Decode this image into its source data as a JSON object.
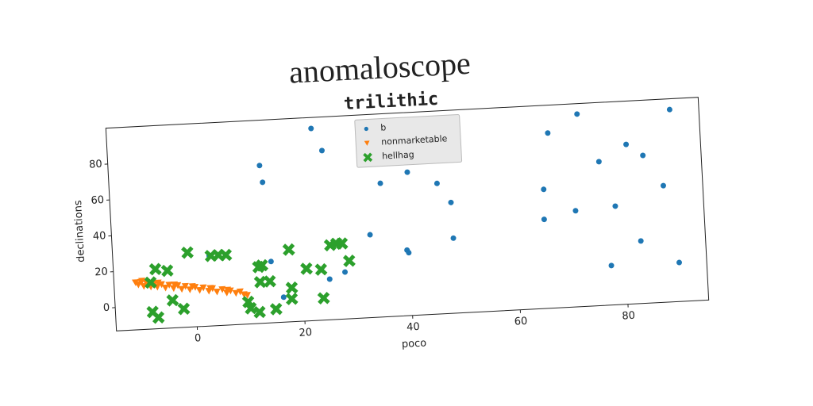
{
  "chart_data": {
    "type": "scatter",
    "title": "anomaloscope",
    "subtitle": "trilithic",
    "x_label": "poco",
    "y_label": "declinations",
    "xlim": [
      -15,
      95
    ],
    "ylim": [
      -13,
      100
    ],
    "xticks": [
      0,
      20,
      40,
      60,
      80
    ],
    "yticks": [
      0,
      20,
      40,
      60,
      80
    ],
    "legend": "upper center",
    "series": [
      {
        "name": "b",
        "color": "#1f77b4",
        "marker": "circle",
        "x": [
          23.0,
          13.1,
          13.5,
          24.8,
          40.4,
          35.3,
          45.8,
          48.2,
          32.9,
          48.3,
          39.6,
          39.9,
          27.9,
          25.0,
          14.3,
          16.3,
          2.9,
          65.5,
          66.8,
          72.4,
          81.2,
          84.2,
          76.0,
          87.7,
          89.6,
          65.3,
          71.2,
          78.6,
          83.0,
          77.3,
          89.9
        ],
        "y": [
          93.9,
          74.8,
          65.4,
          81.3,
          66.8,
          61.4,
          59.7,
          48.7,
          33.1,
          28.8,
          23.5,
          22.0,
          13.1,
          9.6,
          21.1,
          0.9,
          26.1,
          53.3,
          84.5,
          94.2,
          75.9,
          69.3,
          67.1,
          51.9,
          94.0,
          36.6,
          40.5,
          41.9,
          21.8,
          9.0,
          8.7
        ]
      },
      {
        "name": "nonmarketable",
        "color": "#ff7f0e",
        "marker": "triangle_down",
        "x": [
          -11.0,
          -10.5,
          -10.0,
          -9.5,
          -9.0,
          -8.2,
          -7.5,
          -7.0,
          -6.2,
          -5.5,
          -4.8,
          -4.0,
          -3.2,
          -2.5,
          -1.8,
          -1.0,
          0.0,
          0.8,
          1.5,
          2.5,
          3.2,
          4.0,
          5.0,
          5.8,
          6.5,
          7.5,
          8.3,
          9.0,
          9.6,
          -9.8,
          -6.8,
          -3.8,
          -0.5,
          2.8,
          6.0
        ],
        "y": [
          13.3,
          12.0,
          13.5,
          11.0,
          12.8,
          10.5,
          12.0,
          10.2,
          11.5,
          9.5,
          11.0,
          9.0,
          10.5,
          8.3,
          9.8,
          7.8,
          9.0,
          7.2,
          8.5,
          6.5,
          7.8,
          5.8,
          7.0,
          5.0,
          6.0,
          4.5,
          5.2,
          3.5,
          3.0,
          14.0,
          12.5,
          11.0,
          9.5,
          8.0,
          6.5
        ]
      },
      {
        "name": "hellhag",
        "color": "#2ca02c",
        "marker": "x",
        "x": [
          -1.1,
          3.2,
          4.6,
          6.0,
          -7.2,
          -5.0,
          -8.2,
          -8.1,
          -7.1,
          -4.3,
          -2.3,
          9.7,
          10.1,
          11.7,
          14.8,
          11.9,
          12.6,
          12.1,
          13.9,
          17.7,
          17.9,
          17.8,
          20.8,
          23.5,
          23.7,
          25.4,
          26.6,
          27.6,
          28.8
        ],
        "y": [
          28.5,
          26.0,
          26.2,
          26.0,
          20.2,
          19.0,
          12.9,
          -3.5,
          -6.8,
          2.4,
          -2.7,
          -0.7,
          -4.3,
          -6.7,
          -5.5,
          18.4,
          19.2,
          10.0,
          10.1,
          27.2,
          5.9,
          -0.3,
          16.1,
          15.2,
          -0.8,
          28.5,
          29.2,
          29.0,
          19.2
        ]
      }
    ]
  }
}
